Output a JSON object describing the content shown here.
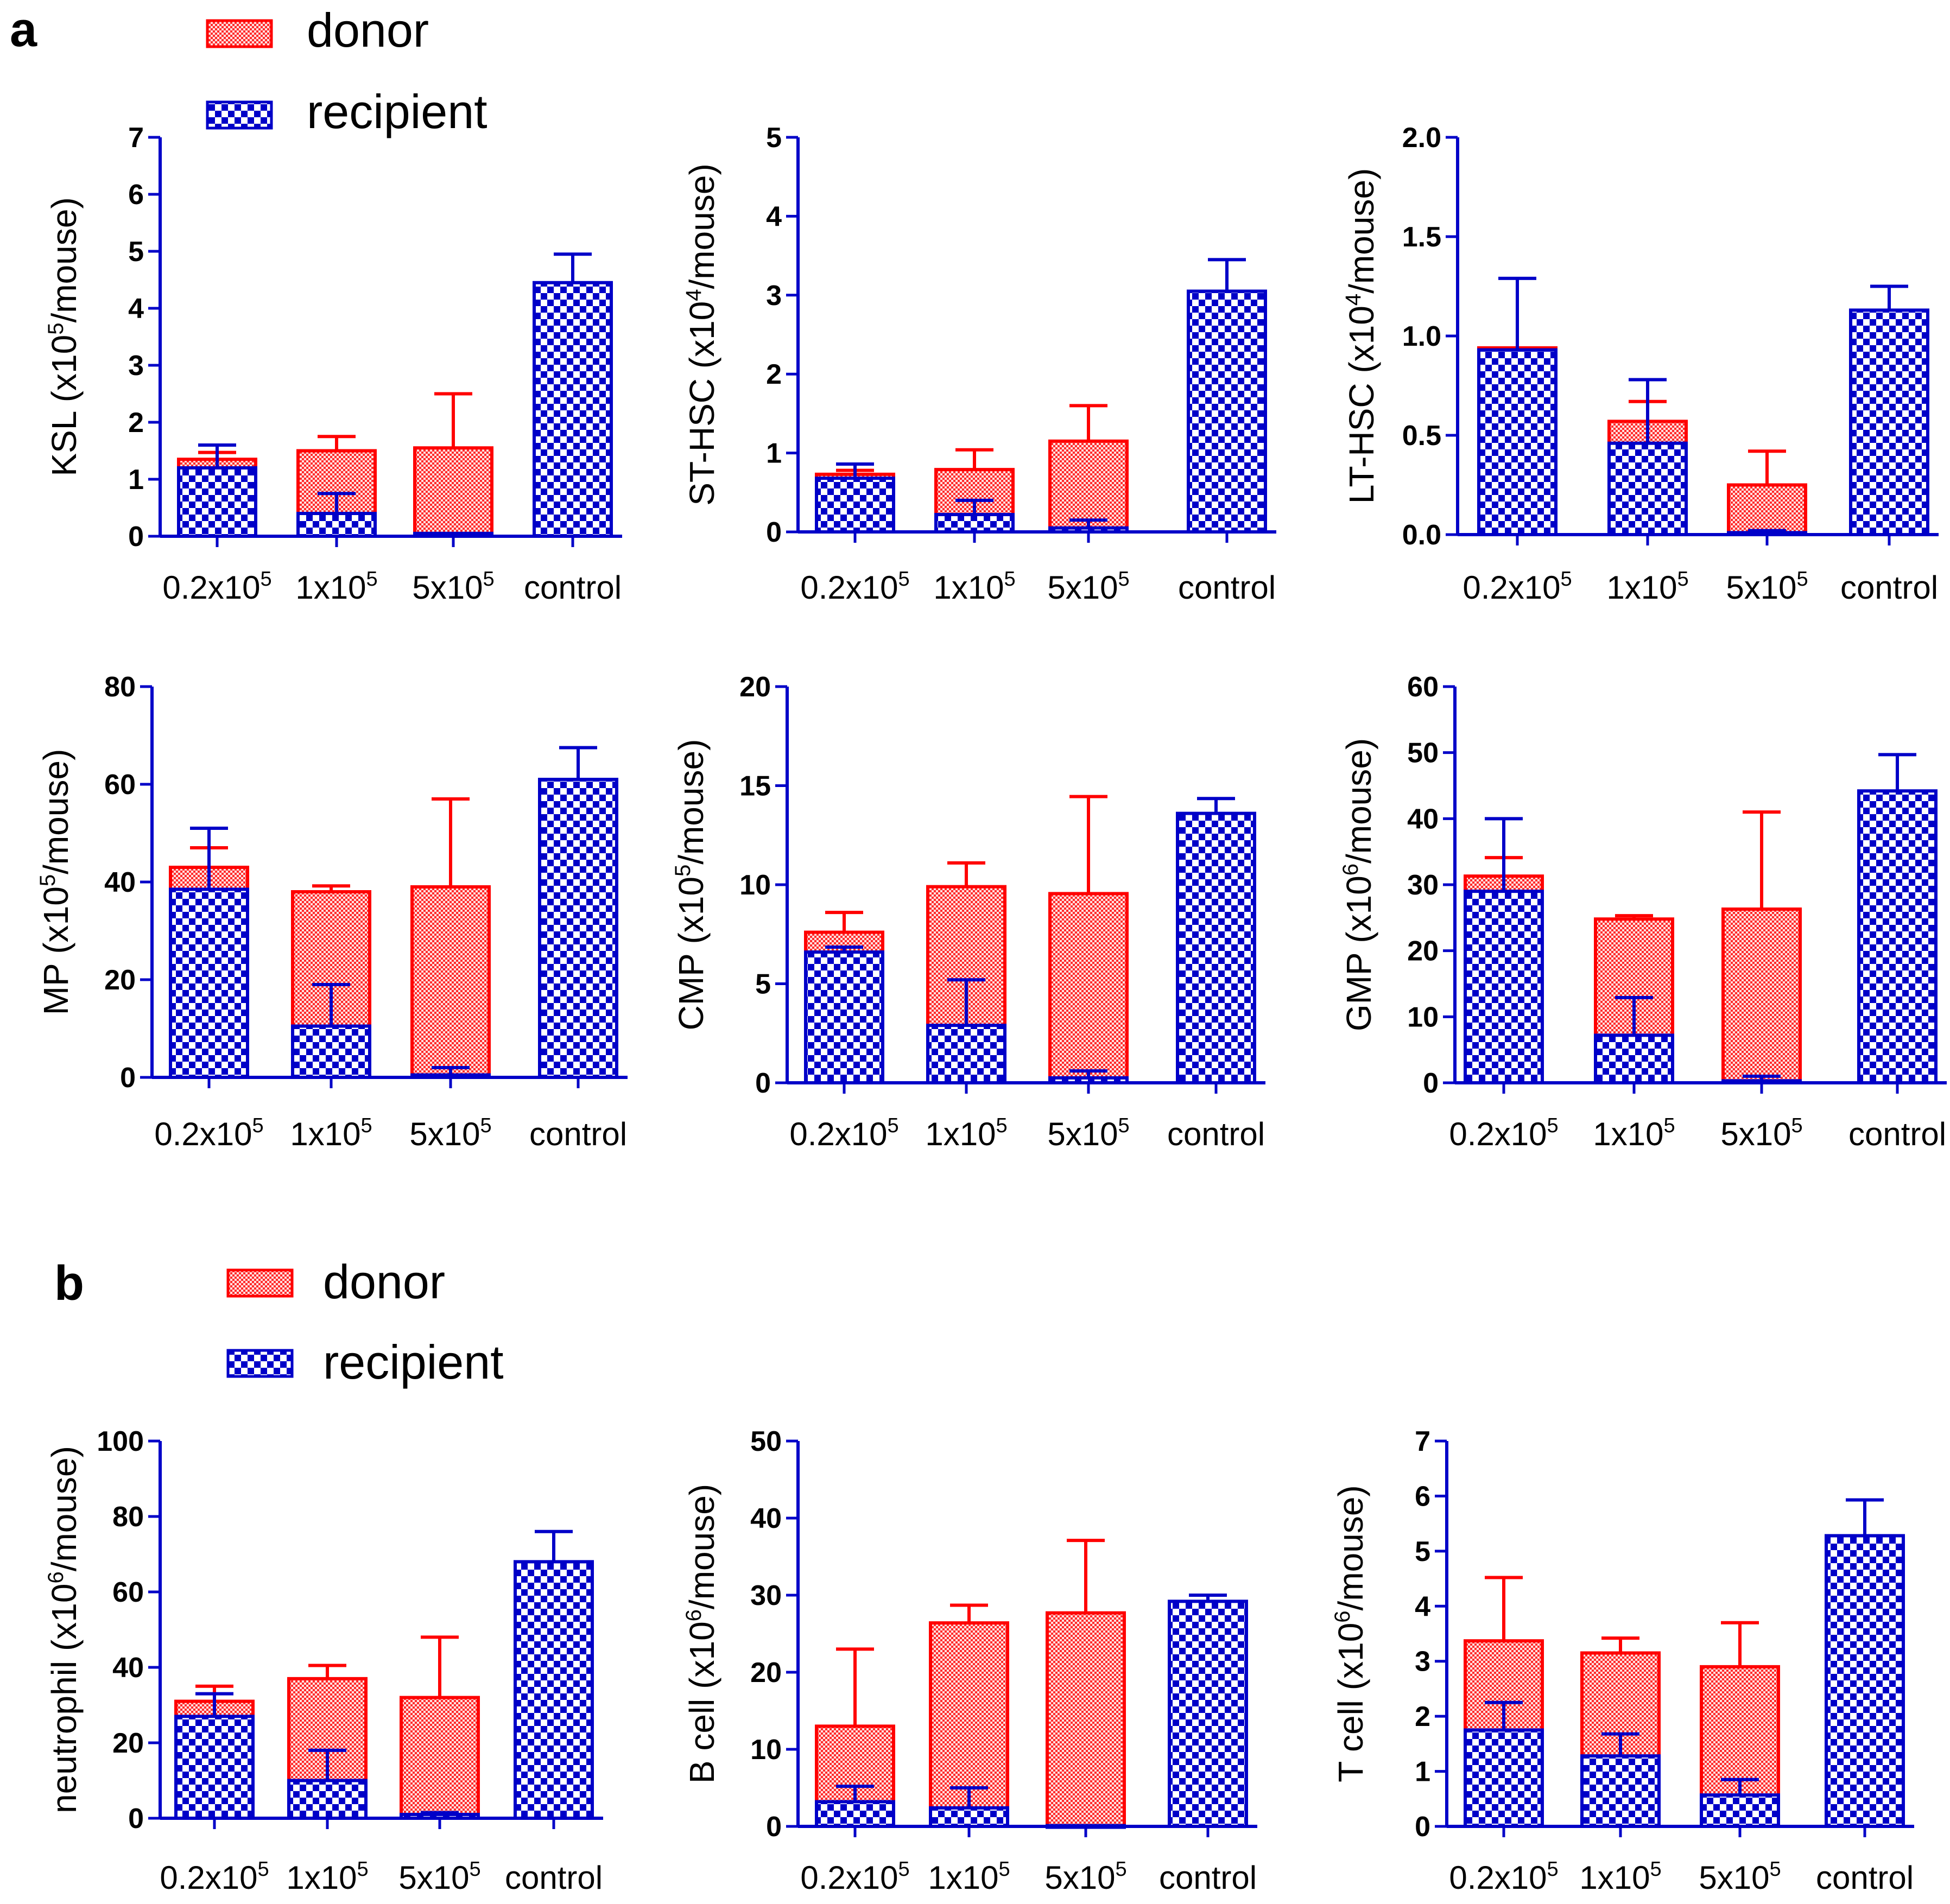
{
  "colors": {
    "donor": "#ff0000",
    "recipient": "#0000c8",
    "donor_fill": "#ff9a9a",
    "recipient_fill": "#3d3de0"
  },
  "panel_a": {
    "letter": "a",
    "legend": {
      "donor": "donor",
      "recipient": "recipient"
    }
  },
  "panel_b": {
    "letter": "b",
    "legend": {
      "donor": "donor",
      "recipient": "recipient"
    }
  },
  "chart_data": [
    {
      "id": "ksl",
      "panel": "a",
      "type": "bar",
      "stacked": true,
      "ylabel": {
        "pre": "KSL (x10",
        "sup": "5",
        "post": "/mouse)"
      },
      "ylim": [
        0,
        7
      ],
      "yticks": [
        "0",
        "1",
        "2",
        "3",
        "4",
        "5",
        "6",
        "7"
      ],
      "categories": [
        {
          "base": "0.2x10",
          "sup": "5"
        },
        {
          "base": "1x10",
          "sup": "5"
        },
        {
          "base": "5x10",
          "sup": "5"
        },
        {
          "base": "control",
          "sup": ""
        }
      ],
      "series": [
        {
          "name": "recipient",
          "values": [
            1.2,
            0.4,
            0.05,
            4.45
          ],
          "errors": [
            0.4,
            0.35,
            0.0,
            0.5
          ]
        },
        {
          "name": "donor",
          "values": [
            0.15,
            1.1,
            1.5,
            0.0
          ],
          "errors": [
            0.12,
            0.25,
            0.95,
            0.0
          ]
        }
      ]
    },
    {
      "id": "st-hsc",
      "panel": "a",
      "type": "bar",
      "stacked": true,
      "ylabel": {
        "pre": "ST-HSC (x10",
        "sup": "4",
        "post": "/mouse)"
      },
      "ylim": [
        0,
        5
      ],
      "yticks": [
        "0",
        "1",
        "2",
        "3",
        "4",
        "5"
      ],
      "categories": [
        {
          "base": "0.2x10",
          "sup": "5"
        },
        {
          "base": "1x10",
          "sup": "5"
        },
        {
          "base": "5x10",
          "sup": "5"
        },
        {
          "base": "control",
          "sup": ""
        }
      ],
      "series": [
        {
          "name": "recipient",
          "values": [
            0.68,
            0.22,
            0.05,
            3.05
          ],
          "errors": [
            0.18,
            0.18,
            0.1,
            0.4
          ]
        },
        {
          "name": "donor",
          "values": [
            0.05,
            0.57,
            1.1,
            0.0
          ],
          "errors": [
            0.05,
            0.25,
            0.45,
            0.0
          ]
        }
      ]
    },
    {
      "id": "lt-hsc",
      "panel": "a",
      "type": "bar",
      "stacked": true,
      "ylabel": {
        "pre": "LT-HSC (x10",
        "sup": "4",
        "post": "/mouse)"
      },
      "ylim": [
        0,
        2.0
      ],
      "yticks": [
        "0.0",
        "0.5",
        "1.0",
        "1.5",
        "2.0"
      ],
      "categories": [
        {
          "base": "0.2x10",
          "sup": "5"
        },
        {
          "base": "1x10",
          "sup": "5"
        },
        {
          "base": "5x10",
          "sup": "5"
        },
        {
          "base": "control",
          "sup": ""
        }
      ],
      "series": [
        {
          "name": "recipient",
          "values": [
            0.93,
            0.46,
            0.01,
            1.13
          ],
          "errors": [
            0.36,
            0.32,
            0.01,
            0.12
          ]
        },
        {
          "name": "donor",
          "values": [
            0.01,
            0.11,
            0.24,
            0.0
          ],
          "errors": [
            0.0,
            0.1,
            0.17,
            0.0
          ]
        }
      ]
    },
    {
      "id": "mp",
      "panel": "a",
      "type": "bar",
      "stacked": true,
      "ylabel": {
        "pre": "MP (x10",
        "sup": "5",
        "post": "/mouse)"
      },
      "ylim": [
        0,
        80
      ],
      "yticks": [
        "0",
        "20",
        "40",
        "60",
        "80"
      ],
      "categories": [
        {
          "base": "0.2x10",
          "sup": "5"
        },
        {
          "base": "1x10",
          "sup": "5"
        },
        {
          "base": "5x10",
          "sup": "5"
        },
        {
          "base": "control",
          "sup": ""
        }
      ],
      "series": [
        {
          "name": "recipient",
          "values": [
            38.5,
            10.5,
            0.5,
            61
          ],
          "errors": [
            12.5,
            8.5,
            1.5,
            6.5
          ]
        },
        {
          "name": "donor",
          "values": [
            4.5,
            27.5,
            38.5,
            0.0
          ],
          "errors": [
            4.0,
            1.2,
            18.0,
            0.0
          ]
        }
      ]
    },
    {
      "id": "cmp",
      "panel": "a",
      "type": "bar",
      "stacked": true,
      "ylabel": {
        "pre": "CMP (x10",
        "sup": "5",
        "post": "/mouse)"
      },
      "ylim": [
        0,
        20
      ],
      "yticks": [
        "0",
        "5",
        "10",
        "15",
        "20"
      ],
      "categories": [
        {
          "base": "0.2x10",
          "sup": "5"
        },
        {
          "base": "1x10",
          "sup": "5"
        },
        {
          "base": "5x10",
          "sup": "5"
        },
        {
          "base": "control",
          "sup": ""
        }
      ],
      "series": [
        {
          "name": "recipient",
          "values": [
            6.6,
            2.9,
            0.25,
            13.6
          ],
          "errors": [
            0.25,
            2.3,
            0.35,
            0.75
          ]
        },
        {
          "name": "donor",
          "values": [
            1.0,
            7.0,
            9.3,
            0.0
          ],
          "errors": [
            1.0,
            1.2,
            4.9,
            0.0
          ]
        }
      ]
    },
    {
      "id": "gmp",
      "panel": "a",
      "type": "bar",
      "stacked": true,
      "ylabel": {
        "pre": "GMP (x10",
        "sup": "6",
        "post": "/mouse)"
      },
      "ylim": [
        0,
        60
      ],
      "yticks": [
        "0",
        "10",
        "20",
        "30",
        "40",
        "50",
        "60"
      ],
      "categories": [
        {
          "base": "0.2x10",
          "sup": "5"
        },
        {
          "base": "1x10",
          "sup": "5"
        },
        {
          "base": "5x10",
          "sup": "5"
        },
        {
          "base": "control",
          "sup": ""
        }
      ],
      "series": [
        {
          "name": "recipient",
          "values": [
            29,
            7.2,
            0.3,
            44.2
          ],
          "errors": [
            11,
            5.7,
            0.7,
            5.5
          ]
        },
        {
          "name": "donor",
          "values": [
            2.3,
            17.6,
            26,
            0.0
          ],
          "errors": [
            2.8,
            0.5,
            14.7,
            0.0
          ]
        }
      ]
    },
    {
      "id": "neutrophil",
      "panel": "b",
      "type": "bar",
      "stacked": true,
      "ylabel": {
        "pre": "neutrophil (x10",
        "sup": "6",
        "post": "/mouse)"
      },
      "ylim": [
        0,
        100
      ],
      "yticks": [
        "0",
        "20",
        "40",
        "60",
        "80",
        "100"
      ],
      "categories": [
        {
          "base": "0.2x10",
          "sup": "5"
        },
        {
          "base": "1x10",
          "sup": "5"
        },
        {
          "base": "5x10",
          "sup": "5"
        },
        {
          "base": "control",
          "sup": ""
        }
      ],
      "series": [
        {
          "name": "recipient",
          "values": [
            27,
            10,
            1,
            68
          ],
          "errors": [
            6,
            8,
            0.5,
            8
          ]
        },
        {
          "name": "donor",
          "values": [
            4,
            27,
            31,
            0.0
          ],
          "errors": [
            4,
            3.5,
            16,
            0.0
          ]
        }
      ]
    },
    {
      "id": "b-cell",
      "panel": "b",
      "type": "bar",
      "stacked": true,
      "ylabel": {
        "pre": "B cell (x10",
        "sup": "6",
        "post": "/mouse)"
      },
      "ylim": [
        0,
        50
      ],
      "yticks": [
        "0",
        "10",
        "20",
        "30",
        "40",
        "50"
      ],
      "categories": [
        {
          "base": "0.2x10",
          "sup": "5"
        },
        {
          "base": "1x10",
          "sup": "5"
        },
        {
          "base": "5x10",
          "sup": "5"
        },
        {
          "base": "control",
          "sup": ""
        }
      ],
      "series": [
        {
          "name": "recipient",
          "values": [
            3.2,
            2.4,
            0.1,
            29.2
          ],
          "errors": [
            2.0,
            2.6,
            0.0,
            0.8
          ]
        },
        {
          "name": "donor",
          "values": [
            9.8,
            24,
            27.6,
            0.0
          ],
          "errors": [
            10,
            2.3,
            9.4,
            0.0
          ]
        }
      ]
    },
    {
      "id": "t-cell",
      "panel": "b",
      "type": "bar",
      "stacked": true,
      "ylabel": {
        "pre": "T cell (x10",
        "sup": "6",
        "post": "/mouse)"
      },
      "ylim": [
        0,
        7
      ],
      "yticks": [
        "0",
        "1",
        "2",
        "3",
        "4",
        "5",
        "6",
        "7"
      ],
      "categories": [
        {
          "base": "0.2x10",
          "sup": "5"
        },
        {
          "base": "1x10",
          "sup": "5"
        },
        {
          "base": "5x10",
          "sup": "5"
        },
        {
          "base": "control",
          "sup": ""
        }
      ],
      "series": [
        {
          "name": "recipient",
          "values": [
            1.75,
            1.28,
            0.57,
            5.28
          ],
          "errors": [
            0.5,
            0.4,
            0.28,
            0.65
          ]
        },
        {
          "name": "donor",
          "values": [
            1.62,
            1.87,
            2.33,
            0.0
          ],
          "errors": [
            1.15,
            0.27,
            0.8,
            0.0
          ]
        }
      ]
    }
  ]
}
